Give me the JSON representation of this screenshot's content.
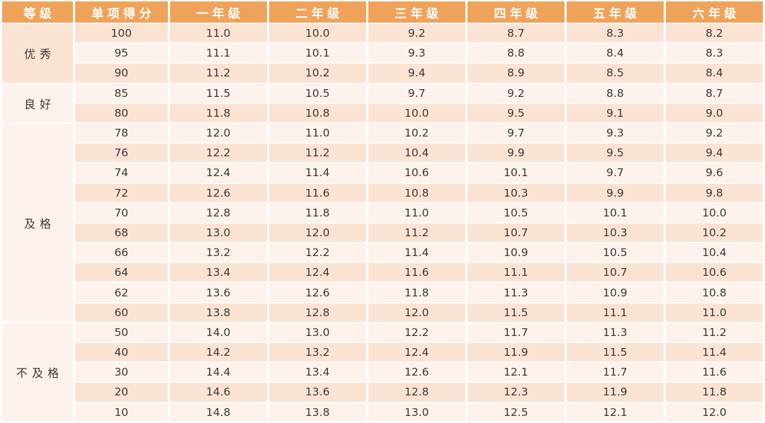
{
  "colors": {
    "header_bg": "#EFA35A",
    "header_text": "#FFFFFF",
    "band_dark": "#FBE3D4",
    "band_light": "#FDF3EC",
    "separator": "#FFFFFF",
    "body_text": "#3A3A3A"
  },
  "table": {
    "headers": [
      "等级",
      "单项得分",
      "一年级",
      "二年级",
      "三年级",
      "四年级",
      "五年级",
      "六年级"
    ],
    "groups": [
      {
        "label": "优秀",
        "rows": [
          {
            "score": "100",
            "values": [
              "11.0",
              "10.0",
              "9.2",
              "8.7",
              "8.3",
              "8.2"
            ]
          },
          {
            "score": "95",
            "values": [
              "11.1",
              "10.1",
              "9.3",
              "8.8",
              "8.4",
              "8.3"
            ]
          },
          {
            "score": "90",
            "values": [
              "11.2",
              "10.2",
              "9.4",
              "8.9",
              "8.5",
              "8.4"
            ]
          }
        ]
      },
      {
        "label": "良好",
        "rows": [
          {
            "score": "85",
            "values": [
              "11.5",
              "10.5",
              "9.7",
              "9.2",
              "8.8",
              "8.7"
            ]
          },
          {
            "score": "80",
            "values": [
              "11.8",
              "10.8",
              "10.0",
              "9.5",
              "9.1",
              "9.0"
            ]
          }
        ]
      },
      {
        "label": "及格",
        "rows": [
          {
            "score": "78",
            "values": [
              "12.0",
              "11.0",
              "10.2",
              "9.7",
              "9.3",
              "9.2"
            ]
          },
          {
            "score": "76",
            "values": [
              "12.2",
              "11.2",
              "10.4",
              "9.9",
              "9.5",
              "9.4"
            ]
          },
          {
            "score": "74",
            "values": [
              "12.4",
              "11.4",
              "10.6",
              "10.1",
              "9.7",
              "9.6"
            ]
          },
          {
            "score": "72",
            "values": [
              "12.6",
              "11.6",
              "10.8",
              "10.3",
              "9.9",
              "9.8"
            ]
          },
          {
            "score": "70",
            "values": [
              "12.8",
              "11.8",
              "11.0",
              "10.5",
              "10.1",
              "10.0"
            ]
          },
          {
            "score": "68",
            "values": [
              "13.0",
              "12.0",
              "11.2",
              "10.7",
              "10.3",
              "10.2"
            ]
          },
          {
            "score": "66",
            "values": [
              "13.2",
              "12.2",
              "11.4",
              "10.9",
              "10.5",
              "10.4"
            ]
          },
          {
            "score": "64",
            "values": [
              "13.4",
              "12.4",
              "11.6",
              "11.1",
              "10.7",
              "10.6"
            ]
          },
          {
            "score": "62",
            "values": [
              "13.6",
              "12.6",
              "11.8",
              "11.3",
              "10.9",
              "10.8"
            ]
          },
          {
            "score": "60",
            "values": [
              "13.8",
              "12.8",
              "12.0",
              "11.5",
              "11.1",
              "11.0"
            ]
          }
        ]
      },
      {
        "label": "不及格",
        "rows": [
          {
            "score": "50",
            "values": [
              "14.0",
              "13.0",
              "12.2",
              "11.7",
              "11.3",
              "11.2"
            ]
          },
          {
            "score": "40",
            "values": [
              "14.2",
              "13.2",
              "12.4",
              "11.9",
              "11.5",
              "11.4"
            ]
          },
          {
            "score": "30",
            "values": [
              "14.4",
              "13.4",
              "12.6",
              "12.1",
              "11.7",
              "11.6"
            ]
          },
          {
            "score": "20",
            "values": [
              "14.6",
              "13.6",
              "12.8",
              "12.3",
              "11.9",
              "11.8"
            ]
          },
          {
            "score": "10",
            "values": [
              "14.8",
              "13.8",
              "13.0",
              "12.5",
              "12.1",
              "12.0"
            ]
          }
        ]
      }
    ]
  }
}
